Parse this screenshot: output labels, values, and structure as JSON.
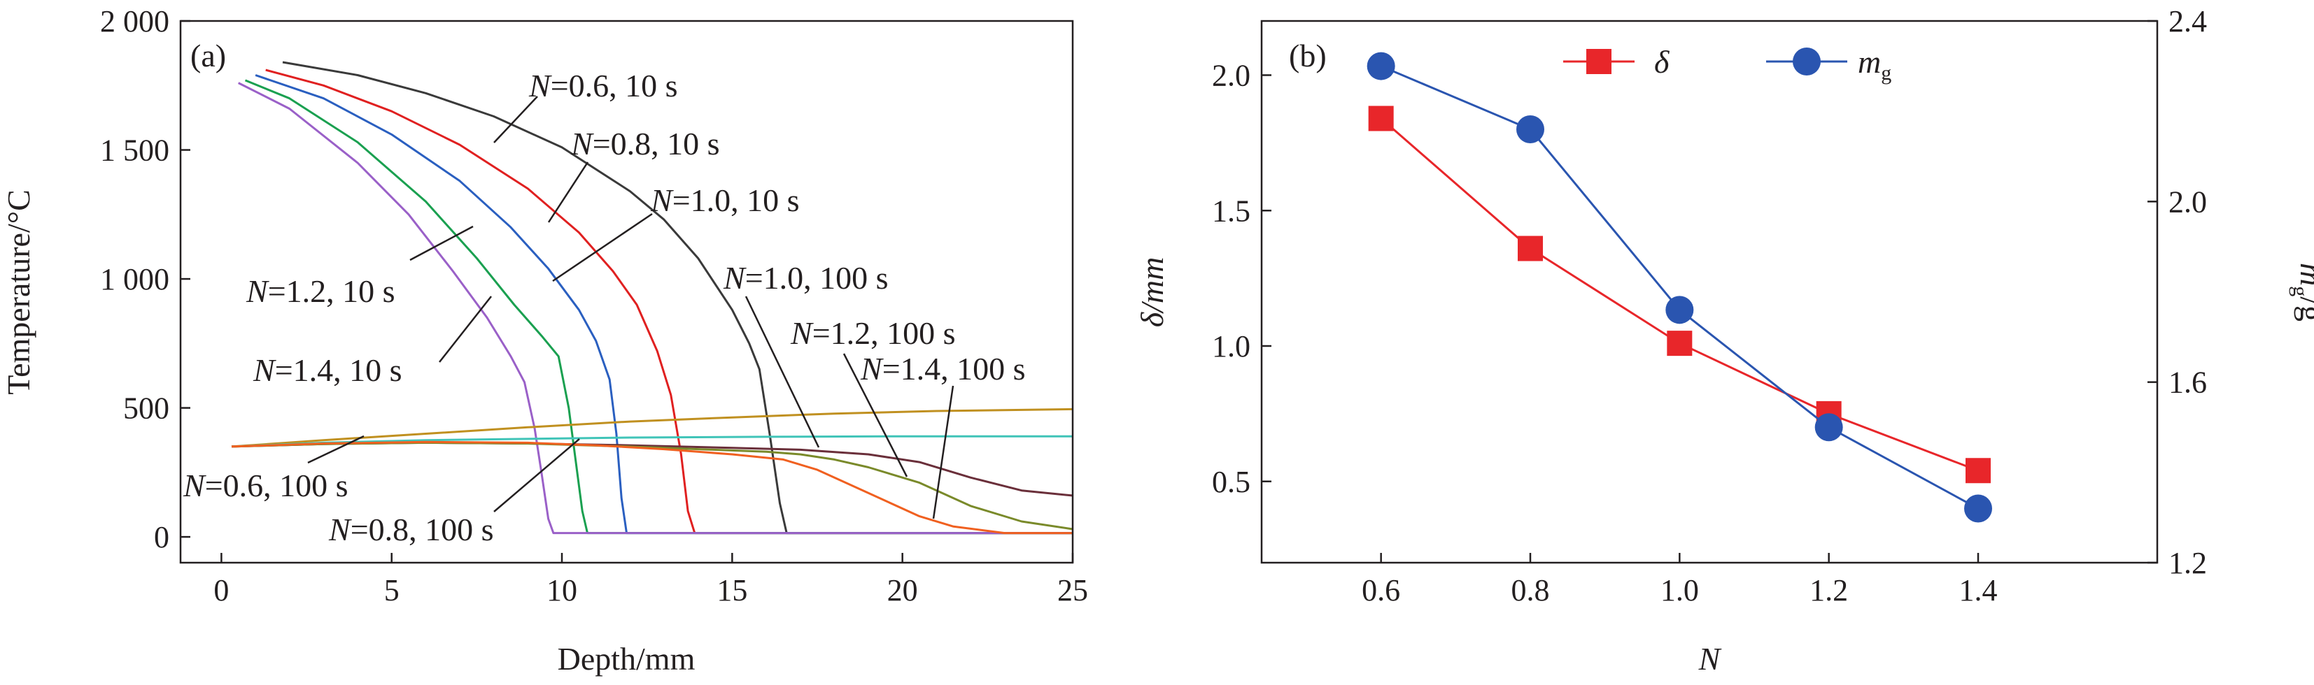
{
  "colors": {
    "n06_10s": "#3a3a3a",
    "n08_10s": "#e02020",
    "n10_10s": "#2a5fc0",
    "n12_10s": "#1aa050",
    "n14_10s": "#9a60c8",
    "n06_100s": "#c09020",
    "n08_100s": "#40c4b8",
    "n10_100s": "#6a2f3a",
    "n12_100s": "#7a8a2a",
    "n14_100s": "#f06020",
    "delta": "#e8262a",
    "mg": "#2a55b0",
    "axis": "#231f20"
  },
  "chart_data": [
    {
      "type": "line",
      "panel_label": "(a)",
      "xlabel": "Depth/mm",
      "ylabel": "Temperature/°C",
      "xlim": [
        -1.2,
        25
      ],
      "ylim": [
        -100,
        2000
      ],
      "xticks": [
        0,
        5,
        10,
        15,
        20,
        25
      ],
      "xtick_labels": [
        "0",
        "5",
        "10",
        "15",
        "20",
        "25"
      ],
      "yticks": [
        0,
        500,
        1000,
        1500,
        2000
      ],
      "ytick_labels": [
        "0",
        "500",
        "1 000",
        "1 500",
        "2 000"
      ],
      "series": [
        {
          "key": "n06_10s",
          "name": "N=0.6, 10 s",
          "color_key": "n06_10s",
          "x": [
            1.8,
            4,
            6,
            8,
            10,
            12,
            13,
            14,
            15,
            15.5,
            15.8,
            16.1,
            16.4,
            16.6,
            25
          ],
          "y": [
            1840,
            1790,
            1720,
            1630,
            1510,
            1340,
            1230,
            1080,
            880,
            750,
            650,
            400,
            130,
            15,
            15
          ]
        },
        {
          "key": "n08_10s",
          "name": "N=0.8, 10 s",
          "color_key": "n08_10s",
          "x": [
            1.3,
            3,
            5,
            7,
            9,
            10.5,
            11.5,
            12.2,
            12.8,
            13.2,
            13.5,
            13.7,
            13.9,
            25
          ],
          "y": [
            1810,
            1750,
            1650,
            1520,
            1350,
            1180,
            1030,
            900,
            720,
            550,
            320,
            100,
            15,
            15
          ]
        },
        {
          "key": "n10_10s",
          "name": "N=1.0, 10 s",
          "color_key": "n10_10s",
          "x": [
            1.0,
            3,
            5,
            7,
            8.5,
            9.6,
            10.5,
            11.0,
            11.4,
            11.6,
            11.75,
            11.9,
            25
          ],
          "y": [
            1790,
            1700,
            1560,
            1380,
            1200,
            1040,
            880,
            760,
            610,
            400,
            150,
            15,
            15
          ]
        },
        {
          "key": "n12_10s",
          "name": "N=1.2, 10 s",
          "color_key": "n12_10s",
          "x": [
            0.7,
            2,
            4,
            6,
            7.5,
            8.6,
            9.4,
            9.9,
            10.2,
            10.4,
            10.6,
            10.75,
            25
          ],
          "y": [
            1770,
            1700,
            1530,
            1300,
            1080,
            900,
            780,
            700,
            500,
            300,
            100,
            15,
            15
          ]
        },
        {
          "key": "n14_10s",
          "name": "N=1.4, 10 s",
          "color_key": "n14_10s",
          "x": [
            0.5,
            2,
            4,
            5.5,
            6.8,
            7.8,
            8.5,
            8.9,
            9.2,
            9.4,
            9.6,
            9.75,
            25
          ],
          "y": [
            1760,
            1660,
            1450,
            1250,
            1030,
            850,
            700,
            600,
            420,
            250,
            70,
            15,
            15
          ]
        },
        {
          "key": "n06_100s",
          "name": "N=0.6, 100 s",
          "color_key": "n06_100s",
          "x": [
            0.3,
            3,
            6,
            9,
            12,
            15,
            18,
            21,
            25
          ],
          "y": [
            350,
            375,
            400,
            425,
            447,
            463,
            478,
            488,
            495
          ]
        },
        {
          "key": "n08_100s",
          "name": "N=0.8, 100 s",
          "color_key": "n08_100s",
          "x": [
            0.3,
            3,
            6,
            9,
            12,
            16,
            20,
            25
          ],
          "y": [
            350,
            365,
            375,
            380,
            385,
            388,
            390,
            390
          ]
        },
        {
          "key": "n10_100s",
          "name": "N=1.0, 100 s",
          "color_key": "n10_100s",
          "x": [
            0.3,
            3,
            6,
            9,
            12,
            15,
            17,
            19,
            20.5,
            22,
            23.5,
            25
          ],
          "y": [
            350,
            360,
            365,
            362,
            355,
            345,
            338,
            320,
            290,
            230,
            180,
            160
          ]
        },
        {
          "key": "n12_100s",
          "name": "N=1.2, 100 s",
          "color_key": "n12_100s",
          "x": [
            0.3,
            3,
            6,
            9,
            12,
            14,
            16,
            17,
            18,
            19,
            20.5,
            22,
            23.5,
            25
          ],
          "y": [
            350,
            360,
            365,
            362,
            350,
            340,
            330,
            320,
            300,
            270,
            210,
            120,
            60,
            30
          ]
        },
        {
          "key": "n14_100s",
          "name": "N=1.4, 100 s",
          "color_key": "n14_100s",
          "x": [
            0.3,
            3,
            6,
            9,
            11,
            13,
            15,
            16.5,
            17.5,
            18.5,
            19.5,
            20.5,
            21.5,
            23,
            25
          ],
          "y": [
            350,
            362,
            368,
            365,
            355,
            340,
            320,
            300,
            260,
            200,
            140,
            80,
            40,
            15,
            15
          ]
        }
      ],
      "annotations": [
        {
          "series": "n06_10s",
          "prefix": "N",
          "text": "=0.6, 10 s"
        },
        {
          "series": "n08_10s",
          "prefix": "N",
          "text": "=0.8, 10 s"
        },
        {
          "series": "n10_10s",
          "prefix": "N",
          "text": "=1.0, 10 s"
        },
        {
          "series": "n12_10s",
          "prefix": "N",
          "text": "=1.2, 10 s"
        },
        {
          "series": "n14_10s",
          "prefix": "N",
          "text": "=1.4, 10 s"
        },
        {
          "series": "n06_100s",
          "prefix": "N",
          "text": "=0.6, 100 s"
        },
        {
          "series": "n08_100s",
          "prefix": "N",
          "text": "=0.8, 100 s"
        },
        {
          "series": "n10_100s",
          "prefix": "N",
          "text": "=1.0, 100 s"
        },
        {
          "series": "n12_100s",
          "prefix": "N",
          "text": "=1.2, 100 s"
        },
        {
          "series": "n14_100s",
          "prefix": "N",
          "text": "=1.4, 100 s"
        }
      ]
    },
    {
      "type": "line",
      "panel_label": "(b)",
      "xlabel": "N",
      "ylabel_left": "δ/mm",
      "ylabel_right_base": "m",
      "ylabel_right_sub": "g",
      "ylabel_right_suffix": "/g",
      "xlim": [
        0.44,
        1.64
      ],
      "ylim_left": [
        0.2,
        2.2
      ],
      "ylim_right": [
        1.2,
        2.4
      ],
      "xticks": [
        0.6,
        0.8,
        1.0,
        1.2,
        1.4
      ],
      "xtick_labels": [
        "0.6",
        "0.8",
        "1.0",
        "1.2",
        "1.4"
      ],
      "yticks_left": [
        0.5,
        1.0,
        1.5,
        2.0
      ],
      "ytick_labels_left": [
        "0.5",
        "1.0",
        "1.5",
        "2.0"
      ],
      "yticks_right": [
        1.2,
        1.6,
        2.0,
        2.4
      ],
      "ytick_labels_right": [
        "1.2",
        "1.6",
        "2.0",
        "2.4"
      ],
      "legend_position": "top-center",
      "series": [
        {
          "key": "delta",
          "name": "δ",
          "axis": "left",
          "marker": "square",
          "color_key": "delta",
          "x": [
            0.6,
            0.8,
            1.0,
            1.2,
            1.4
          ],
          "y": [
            1.84,
            1.36,
            1.01,
            0.75,
            0.54
          ]
        },
        {
          "key": "mg",
          "name_base": "m",
          "name_sub": "g",
          "axis": "right",
          "marker": "circle",
          "color_key": "mg",
          "x": [
            0.6,
            0.8,
            1.0,
            1.2,
            1.4
          ],
          "y": [
            2.3,
            2.16,
            1.76,
            1.5,
            1.32
          ]
        }
      ]
    }
  ]
}
